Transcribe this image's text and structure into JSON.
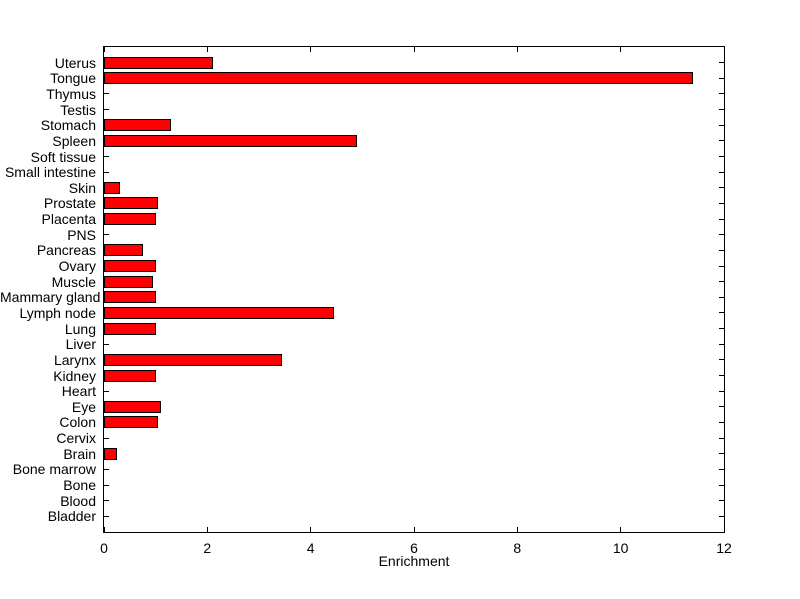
{
  "figure": {
    "background_color": "#ffffff",
    "title": ""
  },
  "chart_data": {
    "type": "bar",
    "orientation": "horizontal",
    "title": "",
    "xlabel": "Enrichment",
    "ylabel": "",
    "xlim": [
      0,
      12
    ],
    "xticks": [
      0,
      2,
      4,
      6,
      8,
      10,
      12
    ],
    "grid": false,
    "legend": "none",
    "row_order": "top-to-bottom",
    "bar_color": "#ff0000",
    "bar_edge_color": "#000000",
    "axis_color": "#000000",
    "categories": [
      "Uterus",
      "Tongue",
      "Thymus",
      "Testis",
      "Stomach",
      "Spleen",
      "Soft tissue",
      "Small intestine",
      "Skin",
      "Prostate",
      "Placenta",
      "PNS",
      "Pancreas",
      "Ovary",
      "Muscle",
      "Mammary gland",
      "Lymph node",
      "Lung",
      "Liver",
      "Larynx",
      "Kidney",
      "Heart",
      "Eye",
      "Colon",
      "Cervix",
      "Brain",
      "Bone marrow",
      "Bone",
      "Blood",
      "Bladder"
    ],
    "values": [
      2.1,
      11.4,
      0,
      0,
      1.3,
      4.9,
      0,
      0,
      0.3,
      1.05,
      1.0,
      0,
      0.75,
      1.0,
      0.95,
      1.0,
      4.45,
      1.0,
      0,
      3.45,
      1.0,
      0,
      1.1,
      1.05,
      0,
      0.25,
      0,
      0,
      0,
      0
    ]
  }
}
